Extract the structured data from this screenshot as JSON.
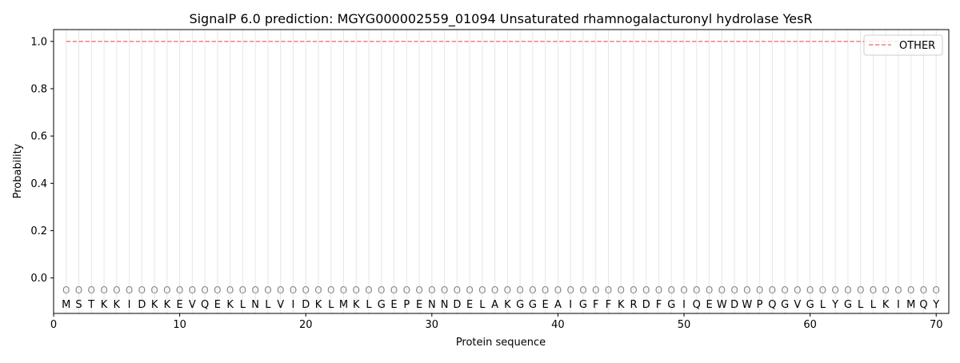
{
  "chart_data": {
    "type": "line",
    "title": "SignalP 6.0 prediction: MGYG000002559_01094 Unsaturated rhamnogalacturonyl hydrolase YesR",
    "xlabel": "Protein sequence",
    "ylabel": "Probability",
    "xlim": [
      0,
      71
    ],
    "ylim": [
      -0.15,
      1.05
    ],
    "xticks": [
      0,
      10,
      20,
      30,
      40,
      50,
      60,
      70
    ],
    "yticks": [
      0.0,
      0.2,
      0.4,
      0.6,
      0.8,
      1.0
    ],
    "ytick_labels": [
      "0.0",
      "0.2",
      "0.4",
      "0.6",
      "0.8",
      "1.0"
    ],
    "grid": false,
    "legend_placement": "top-right",
    "sequence": [
      "M",
      "S",
      "T",
      "K",
      "K",
      "I",
      "D",
      "K",
      "K",
      "E",
      "V",
      "Q",
      "E",
      "K",
      "L",
      "N",
      "L",
      "V",
      "I",
      "D",
      "K",
      "L",
      "M",
      "K",
      "L",
      "G",
      "E",
      "P",
      "E",
      "N",
      "N",
      "D",
      "E",
      "L",
      "A",
      "K",
      "G",
      "G",
      "E",
      "A",
      "I",
      "G",
      "F",
      "F",
      "K",
      "R",
      "D",
      "F",
      "G",
      "I",
      "Q",
      "E",
      "W",
      "D",
      "W",
      "P",
      "Q",
      "G",
      "V",
      "G",
      "L",
      "Y",
      "G",
      "L",
      "L",
      "K",
      "I",
      "M",
      "Q",
      "Y"
    ],
    "predicted_label": "O",
    "series": [
      {
        "name": "OTHER",
        "color": "#f08080",
        "style": "dashed",
        "x_range": [
          1,
          70
        ],
        "value": 1.0
      }
    ]
  }
}
